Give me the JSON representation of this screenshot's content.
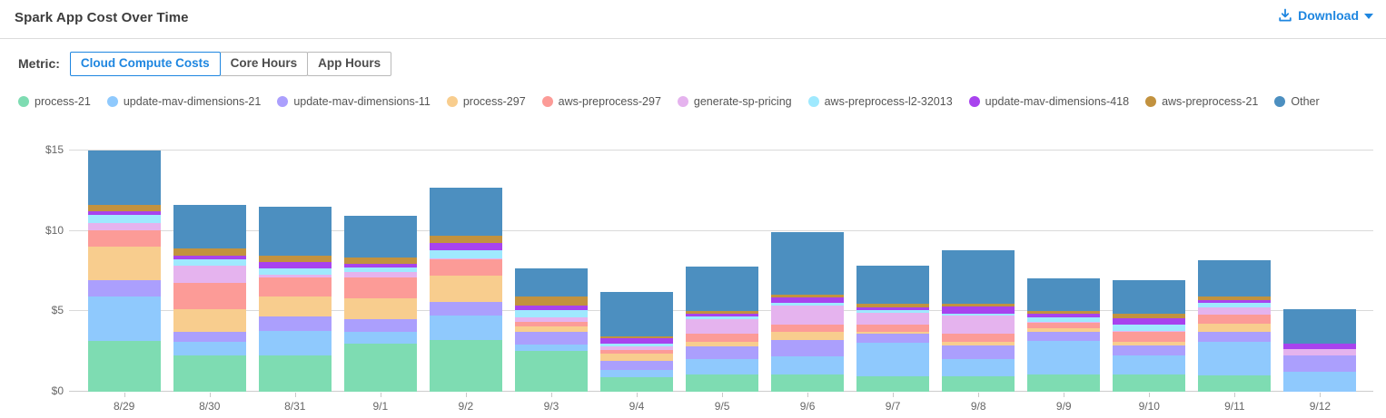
{
  "header": {
    "title": "Spark App Cost Over Time",
    "download_label": "Download"
  },
  "metric": {
    "label": "Metric:",
    "tabs": [
      {
        "label": "Cloud Compute Costs",
        "selected": true
      },
      {
        "label": "Core Hours",
        "selected": false
      },
      {
        "label": "App Hours",
        "selected": false
      }
    ]
  },
  "colors": {
    "accent_blue": "#1e86e0",
    "gridline": "#d9d9d9",
    "axis_text": "#666666",
    "legend_text": "#555555"
  },
  "chart_data": {
    "type": "bar",
    "stacked": true,
    "title": "Spark App Cost Over Time",
    "xlabel": "",
    "ylabel": "",
    "ylim": [
      0,
      15
    ],
    "grid": true,
    "legend_position": "top",
    "y_ticks": [
      {
        "label": "$0",
        "value": 0
      },
      {
        "label": "$5",
        "value": 5
      },
      {
        "label": "$10",
        "value": 10
      },
      {
        "label": "$15",
        "value": 15
      }
    ],
    "categories": [
      "8/29",
      "8/30",
      "8/31",
      "9/1",
      "9/2",
      "9/3",
      "9/4",
      "9/5",
      "9/6",
      "9/7",
      "9/8",
      "9/9",
      "9/10",
      "9/11",
      "9/12"
    ],
    "series": [
      {
        "name": "process-21",
        "color": "#7edcb2",
        "values": [
          3.15,
          2.25,
          2.25,
          3.0,
          3.2,
          2.55,
          0.9,
          1.1,
          1.1,
          0.95,
          0.95,
          1.1,
          1.1,
          1.0,
          0
        ]
      },
      {
        "name": "update-mav-dimensions-21",
        "color": "#8fc9fd",
        "values": [
          2.75,
          0.85,
          1.55,
          0.7,
          1.55,
          0.4,
          0.45,
          0.95,
          1.1,
          2.1,
          1.1,
          2.05,
          1.15,
          2.1,
          1.25
        ]
      },
      {
        "name": "update-mav-dimensions-11",
        "color": "#ab9ffd",
        "values": [
          1.05,
          0.65,
          0.9,
          0.8,
          0.85,
          0.75,
          0.55,
          0.75,
          1.0,
          0.55,
          0.8,
          0.55,
          0.6,
          0.65,
          1.0
        ]
      },
      {
        "name": "process-297",
        "color": "#f8cd8e",
        "values": [
          2.1,
          1.4,
          1.25,
          1.3,
          1.6,
          0.35,
          0.45,
          0.3,
          0.55,
          0.15,
          0.25,
          0.25,
          0.25,
          0.5,
          0
        ]
      },
      {
        "name": "aws-preprocess-297",
        "color": "#fc9b97",
        "values": [
          1.0,
          1.6,
          1.15,
          1.3,
          1.05,
          0.3,
          0.25,
          0.5,
          0.45,
          0.45,
          0.5,
          0.35,
          0.6,
          0.55,
          0
        ]
      },
      {
        "name": "generate-sp-pricing",
        "color": "#e5b3ee",
        "values": [
          0.45,
          1.1,
          0.15,
          0.35,
          0.05,
          0.25,
          0.2,
          0.9,
          1.15,
          0.7,
          1.15,
          0.05,
          0.1,
          0.45,
          0.4
        ]
      },
      {
        "name": "aws-preprocess-l2-32013",
        "color": "#9fe9fe",
        "values": [
          0.5,
          0.4,
          0.4,
          0.3,
          0.5,
          0.5,
          0.2,
          0.2,
          0.2,
          0.2,
          0.1,
          0.3,
          0.4,
          0.3,
          0
        ]
      },
      {
        "name": "update-mav-dimensions-418",
        "color": "#a843ee",
        "values": [
          0.25,
          0.2,
          0.4,
          0.2,
          0.45,
          0.25,
          0.35,
          0.15,
          0.3,
          0.15,
          0.45,
          0.2,
          0.4,
          0.15,
          0.35
        ]
      },
      {
        "name": "aws-preprocess-21",
        "color": "#c2923f",
        "values": [
          0.35,
          0.45,
          0.4,
          0.4,
          0.45,
          0.6,
          0.1,
          0.2,
          0.2,
          0.2,
          0.2,
          0.2,
          0.25,
          0.2,
          0
        ]
      },
      {
        "name": "Other",
        "color": "#4c8fc0",
        "values": [
          3.4,
          2.7,
          3.05,
          2.6,
          3.0,
          1.75,
          2.75,
          2.75,
          3.9,
          2.4,
          3.3,
          2.0,
          2.1,
          2.3,
          2.15
        ]
      }
    ]
  }
}
